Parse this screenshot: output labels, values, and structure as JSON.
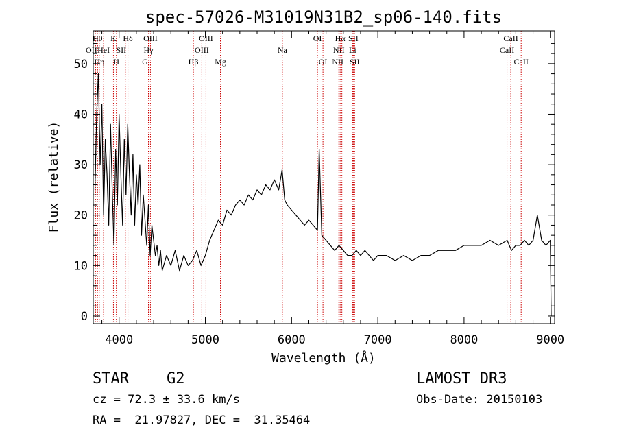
{
  "chart_data": {
    "type": "line",
    "title": "spec-57026-M31019N31B2_sp06-140.fits",
    "xlabel": "Wavelength (Å)",
    "ylabel": "Flux (relative)",
    "xlim": [
      3700,
      9050
    ],
    "ylim": [
      -1.5,
      56.5
    ],
    "x_ticks": [
      4000,
      5000,
      6000,
      7000,
      8000,
      9000
    ],
    "y_ticks": [
      0,
      10,
      20,
      30,
      40,
      50
    ],
    "grid": false,
    "line_color": "#000000",
    "marker_color": "#cc0000",
    "series": [
      {
        "x": [
          3720,
          3740,
          3760,
          3780,
          3800,
          3820,
          3840,
          3860,
          3880,
          3900,
          3920,
          3940,
          3960,
          3980,
          4000,
          4020,
          4040,
          4060,
          4080,
          4100,
          4120,
          4140,
          4160,
          4180,
          4200,
          4220,
          4240,
          4260,
          4280,
          4300,
          4320,
          4340,
          4360,
          4380,
          4400,
          4420,
          4440,
          4460,
          4480,
          4500,
          4550,
          4600,
          4650,
          4700,
          4750,
          4800,
          4850,
          4900,
          4950,
          5000,
          5050,
          5100,
          5150,
          5200,
          5250,
          5300,
          5350,
          5400,
          5450,
          5500,
          5550,
          5600,
          5650,
          5700,
          5750,
          5800,
          5850,
          5890,
          5920,
          5950,
          6000,
          6050,
          6100,
          6150,
          6200,
          6250,
          6300,
          6320,
          6350,
          6400,
          6450,
          6500,
          6550,
          6600,
          6650,
          6700,
          6750,
          6800,
          6850,
          6900,
          6950,
          7000,
          7100,
          7200,
          7300,
          7400,
          7500,
          7600,
          7700,
          7800,
          7900,
          8000,
          8100,
          8200,
          8300,
          8400,
          8500,
          8550,
          8600,
          8650,
          8700,
          8750,
          8800,
          8850,
          8900,
          8950,
          9000,
          9010
        ],
        "y": [
          25,
          40,
          48,
          30,
          42,
          20,
          35,
          28,
          18,
          38,
          25,
          14,
          33,
          22,
          40,
          28,
          18,
          35,
          24,
          38,
          28,
          20,
          32,
          18,
          28,
          22,
          30,
          16,
          24,
          19,
          14,
          22,
          12,
          18,
          15,
          12,
          14,
          10,
          13,
          9,
          12,
          10,
          13,
          9,
          12,
          10,
          11,
          13,
          10,
          12,
          15,
          17,
          19,
          18,
          21,
          20,
          22,
          23,
          22,
          24,
          23,
          25,
          24,
          26,
          25,
          27,
          25,
          29,
          23,
          22,
          21,
          20,
          19,
          18,
          19,
          18,
          17,
          33,
          16,
          15,
          14,
          13,
          14,
          13,
          12,
          12,
          13,
          12,
          13,
          12,
          11,
          12,
          12,
          11,
          12,
          11,
          12,
          12,
          13,
          13,
          13,
          14,
          14,
          14,
          15,
          14,
          15,
          13,
          14,
          14,
          15,
          14,
          15,
          20,
          15,
          14,
          15,
          0
        ]
      }
    ],
    "line_markers": [
      {
        "x": 3727,
        "label": "OII",
        "row": 1,
        "offset": -6
      },
      {
        "x": 3750,
        "label": "Hθ",
        "row": 0,
        "offset": 0
      },
      {
        "x": 3770,
        "label": "Hη",
        "row": 2,
        "offset": 0
      },
      {
        "x": 3820,
        "label": "HeI",
        "row": 1,
        "offset": 0
      },
      {
        "x": 3934,
        "label": "K",
        "row": 0,
        "offset": 0
      },
      {
        "x": 3968,
        "label": "H",
        "row": 2,
        "offset": 0
      },
      {
        "x": 4072,
        "label": "SII",
        "row": 1,
        "offset": -6
      },
      {
        "x": 4102,
        "label": "Hδ",
        "row": 0,
        "offset": 0
      },
      {
        "x": 4300,
        "label": "G",
        "row": 2,
        "offset": 0
      },
      {
        "x": 4340,
        "label": "Hγ",
        "row": 1,
        "offset": 0
      },
      {
        "x": 4363,
        "label": "OIII",
        "row": 0,
        "offset": 0
      },
      {
        "x": 4861,
        "label": "Hβ",
        "row": 2,
        "offset": 0
      },
      {
        "x": 4959,
        "label": "OIII",
        "row": 1,
        "offset": 0
      },
      {
        "x": 5007,
        "label": "OIII",
        "row": 0,
        "offset": 0
      },
      {
        "x": 5175,
        "label": "Mg",
        "row": 2,
        "offset": 0
      },
      {
        "x": 5893,
        "label": "Na",
        "row": 1,
        "offset": 0
      },
      {
        "x": 6300,
        "label": "OI",
        "row": 0,
        "offset": 0
      },
      {
        "x": 6364,
        "label": "OI",
        "row": 2,
        "offset": 0
      },
      {
        "x": 6548,
        "label": "NII",
        "row": 1,
        "offset": 0
      },
      {
        "x": 6563,
        "label": "Hα",
        "row": 0,
        "offset": 0
      },
      {
        "x": 6583,
        "label": "NII",
        "row": 2,
        "offset": -6
      },
      {
        "x": 6708,
        "label": "Li",
        "row": 1,
        "offset": 0
      },
      {
        "x": 6716,
        "label": "SII",
        "row": 0,
        "offset": 0
      },
      {
        "x": 6731,
        "label": "SII",
        "row": 2,
        "offset": 0
      },
      {
        "x": 8498,
        "label": "CaII",
        "row": 1,
        "offset": 0
      },
      {
        "x": 8542,
        "label": "CaII",
        "row": 0,
        "offset": 0
      },
      {
        "x": 8662,
        "label": "CaII",
        "row": 2,
        "offset": 0
      }
    ]
  },
  "info": {
    "class_label": "STAR",
    "subclass_label": "G2",
    "survey": "LAMOST DR3",
    "cz": "cz = 72.3 ± 33.6 km/s",
    "obs_date": "Obs-Date: 20150103",
    "coords": "RA =  21.97827, DEC =  31.35464"
  }
}
